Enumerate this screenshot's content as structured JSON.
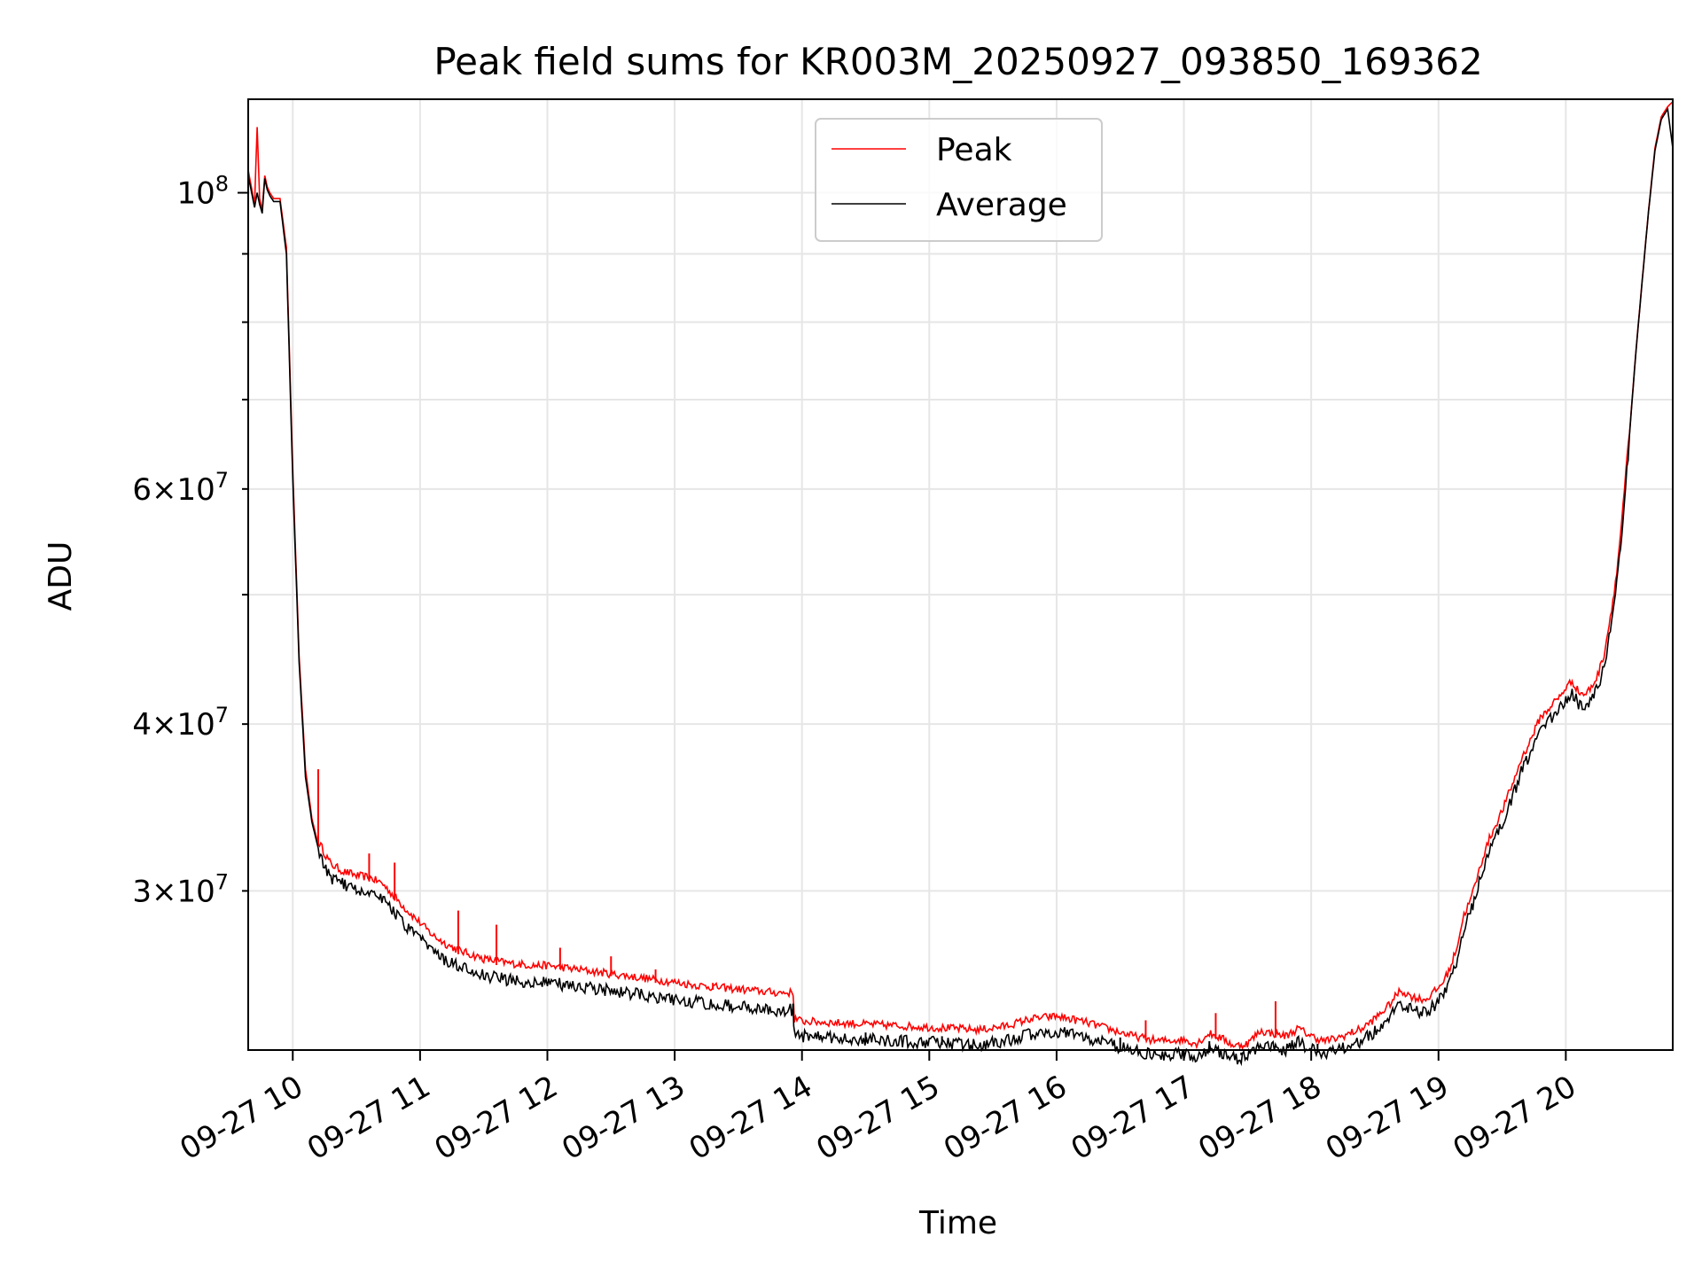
{
  "chart_data": {
    "type": "line",
    "title": "Peak field sums for KR003M_20250927_093850_169362",
    "xlabel": "Time",
    "ylabel": "ADU",
    "x_unit": "hour of 2025-09-27",
    "xlim": [
      9.65,
      20.84
    ],
    "ylim": [
      22800000,
      117500000
    ],
    "yscale": "log",
    "grid": true,
    "x_ticks": [
      {
        "value": 10,
        "label": "09-27 10"
      },
      {
        "value": 11,
        "label": "09-27 11"
      },
      {
        "value": 12,
        "label": "09-27 12"
      },
      {
        "value": 13,
        "label": "09-27 13"
      },
      {
        "value": 14,
        "label": "09-27 14"
      },
      {
        "value": 15,
        "label": "09-27 15"
      },
      {
        "value": 16,
        "label": "09-27 16"
      },
      {
        "value": 17,
        "label": "09-27 17"
      },
      {
        "value": 18,
        "label": "09-27 18"
      },
      {
        "value": 19,
        "label": "09-27 19"
      },
      {
        "value": 20,
        "label": "09-27 20"
      }
    ],
    "y_ticks_major": [
      {
        "value": 100000000,
        "base": "10",
        "exp": "8"
      }
    ],
    "y_ticks_minor": [
      {
        "value": 30000000,
        "mant": "3",
        "base": "10",
        "exp": "7"
      },
      {
        "value": 40000000,
        "mant": "4",
        "base": "10",
        "exp": "7"
      },
      {
        "value": 60000000,
        "mant": "6",
        "base": "10",
        "exp": "7"
      }
    ],
    "y_ticks_minor_unlabeled": [
      50000000,
      70000000,
      80000000,
      90000000
    ],
    "legend": {
      "placement": "upper center"
    },
    "series": [
      {
        "name": "Peak",
        "color": "#ff0000",
        "x": [
          9.65,
          9.7,
          9.72,
          9.74,
          9.76,
          9.78,
          9.8,
          9.82,
          9.85,
          9.9,
          9.95,
          10.0,
          10.05,
          10.1,
          10.15,
          10.2,
          10.25,
          10.3,
          10.4,
          10.5,
          10.6,
          10.7,
          10.8,
          10.9,
          11.0,
          11.1,
          11.2,
          11.3,
          11.4,
          11.5,
          11.6,
          11.7,
          11.8,
          11.9,
          12.0,
          12.2,
          12.4,
          12.6,
          12.8,
          13.0,
          13.2,
          13.4,
          13.6,
          13.8,
          13.93,
          13.94,
          14.0,
          14.2,
          14.4,
          14.6,
          14.8,
          15.0,
          15.2,
          15.4,
          15.6,
          15.8,
          16.0,
          16.2,
          16.4,
          16.6,
          16.8,
          17.0,
          17.1,
          17.2,
          17.3,
          17.4,
          17.5,
          17.6,
          17.7,
          17.8,
          17.9,
          18.0,
          18.1,
          18.2,
          18.3,
          18.4,
          18.5,
          18.6,
          18.7,
          18.8,
          18.9,
          19.0,
          19.05,
          19.1,
          19.15,
          19.2,
          19.25,
          19.3,
          19.35,
          19.4,
          19.45,
          19.5,
          19.55,
          19.6,
          19.65,
          19.7,
          19.75,
          19.8,
          19.85,
          19.9,
          19.95,
          20.0,
          20.05,
          20.1,
          20.15,
          20.2,
          20.25,
          20.3,
          20.35,
          20.4,
          20.45,
          20.5,
          20.55,
          20.6,
          20.65,
          20.7,
          20.75,
          20.8,
          20.84
        ],
        "values": [
          104000000,
          98000000,
          112000000,
          99000000,
          97000000,
          103000000,
          101000000,
          100000000,
          99000000,
          99000000,
          91000000,
          62000000,
          45000000,
          37000000,
          34000000,
          32500000,
          31800000,
          31200000,
          30800000,
          30600000,
          30500000,
          30200000,
          29500000,
          28800000,
          28200000,
          27600000,
          27200000,
          26900000,
          26700000,
          26500000,
          26400000,
          26300000,
          26250000,
          26200000,
          26200000,
          26050000,
          25900000,
          25750000,
          25600000,
          25450000,
          25300000,
          25200000,
          25100000,
          25000000,
          25000000,
          23900000,
          23800000,
          23750000,
          23700000,
          23650000,
          23600000,
          23550000,
          23500000,
          23450000,
          23600000,
          23900000,
          24000000,
          23800000,
          23500000,
          23200000,
          23000000,
          23050000,
          22900000,
          23300000,
          23100000,
          22800000,
          22900000,
          23400000,
          23300000,
          23200000,
          23500000,
          23200000,
          23000000,
          23100000,
          23300000,
          23500000,
          23900000,
          24400000,
          25100000,
          24800000,
          24700000,
          25200000,
          25600000,
          26200000,
          27200000,
          28600000,
          29300000,
          30400000,
          31600000,
          32600000,
          33400000,
          34200000,
          35200000,
          36200000,
          37400000,
          38200000,
          39200000,
          40200000,
          40600000,
          41200000,
          41600000,
          42300000,
          42800000,
          42000000,
          41800000,
          42300000,
          43200000,
          44800000,
          47800000,
          51500000,
          57800000,
          66000000,
          76000000,
          86000000,
          97000000,
          108000000,
          114000000,
          116000000,
          117000000
        ],
        "spikes": [
          {
            "x": 9.72,
            "y": 112000000
          },
          {
            "x": 10.2,
            "y": 37000000
          },
          {
            "x": 10.6,
            "y": 32000000
          },
          {
            "x": 10.8,
            "y": 31500000
          },
          {
            "x": 11.3,
            "y": 29000000
          },
          {
            "x": 11.6,
            "y": 28300000
          },
          {
            "x": 12.1,
            "y": 27200000
          },
          {
            "x": 12.5,
            "y": 26800000
          },
          {
            "x": 12.85,
            "y": 26200000
          },
          {
            "x": 13.3,
            "y": 25600000
          },
          {
            "x": 16.7,
            "y": 24000000
          },
          {
            "x": 17.25,
            "y": 24300000
          },
          {
            "x": 17.72,
            "y": 24800000
          }
        ]
      },
      {
        "name": "Average",
        "color": "#000000",
        "x": [
          9.65,
          9.7,
          9.72,
          9.74,
          9.76,
          9.78,
          9.8,
          9.82,
          9.85,
          9.9,
          9.95,
          10.0,
          10.05,
          10.1,
          10.15,
          10.2,
          10.25,
          10.3,
          10.4,
          10.5,
          10.6,
          10.7,
          10.8,
          10.9,
          11.0,
          11.1,
          11.2,
          11.3,
          11.4,
          11.5,
          11.6,
          11.7,
          11.8,
          11.9,
          12.0,
          12.2,
          12.4,
          12.6,
          12.8,
          13.0,
          13.2,
          13.4,
          13.6,
          13.8,
          13.93,
          13.94,
          14.0,
          14.2,
          14.4,
          14.6,
          14.8,
          15.0,
          15.2,
          15.4,
          15.6,
          15.8,
          16.0,
          16.2,
          16.4,
          16.6,
          16.8,
          17.0,
          17.1,
          17.2,
          17.3,
          17.4,
          17.5,
          17.6,
          17.7,
          17.8,
          17.9,
          18.0,
          18.1,
          18.2,
          18.3,
          18.4,
          18.5,
          18.6,
          18.7,
          18.8,
          18.9,
          19.0,
          19.05,
          19.1,
          19.15,
          19.2,
          19.25,
          19.3,
          19.35,
          19.4,
          19.45,
          19.5,
          19.55,
          19.6,
          19.65,
          19.7,
          19.75,
          19.8,
          19.85,
          19.9,
          19.95,
          20.0,
          20.05,
          20.1,
          20.15,
          20.2,
          20.25,
          20.3,
          20.35,
          20.4,
          20.45,
          20.5,
          20.55,
          20.6,
          20.65,
          20.7,
          20.75,
          20.8,
          20.84
        ],
        "values": [
          103000000,
          97500000,
          100000000,
          98000000,
          96500000,
          102500000,
          100500000,
          99500000,
          98500000,
          98500000,
          90000000,
          61000000,
          44500000,
          36500000,
          33800000,
          32300000,
          31600000,
          31000000,
          30700000,
          30400000,
          30300000,
          30000000,
          29200000,
          28400000,
          27900000,
          27300000,
          26900000,
          26600000,
          26400000,
          26200000,
          26100000,
          26000000,
          25950000,
          25900000,
          25900000,
          25750000,
          25600000,
          25450000,
          25300000,
          25150000,
          25000000,
          24900000,
          24800000,
          24700000,
          24700000,
          23700000,
          23600000,
          23550000,
          23500000,
          23450000,
          23400000,
          23350000,
          23300000,
          23250000,
          23400000,
          23700000,
          23800000,
          23600000,
          23300000,
          23000000,
          22850000,
          22900000,
          22750000,
          23150000,
          22950000,
          22700000,
          22800000,
          23250000,
          23150000,
          23050000,
          23350000,
          23050000,
          22900000,
          23000000,
          23200000,
          23400000,
          23800000,
          24300000,
          24950000,
          24650000,
          24550000,
          25050000,
          25450000,
          26050000,
          27050000,
          28450000,
          29150000,
          30250000,
          31450000,
          32450000,
          33250000,
          34050000,
          35050000,
          36050000,
          37250000,
          38050000,
          39050000,
          40050000,
          40450000,
          41050000,
          41450000,
          42150000,
          42650000,
          41850000,
          41650000,
          42150000,
          43050000,
          44650000,
          47650000,
          51350000,
          57650000,
          65850000,
          75850000,
          85850000,
          96850000,
          107500000,
          113500000,
          115500000,
          108000000
        ],
        "dips": [
          {
            "x": 13.93,
            "y": 24300000
          },
          {
            "x": 14.5,
            "y": 23100000
          },
          {
            "x": 15.1,
            "y": 23000000
          },
          {
            "x": 16.5,
            "y": 22800000
          },
          {
            "x": 17.2,
            "y": 22700000
          },
          {
            "x": 17.45,
            "y": 22600000
          },
          {
            "x": 18.05,
            "y": 22700000
          },
          {
            "x": 18.95,
            "y": 24600000
          }
        ]
      }
    ]
  }
}
